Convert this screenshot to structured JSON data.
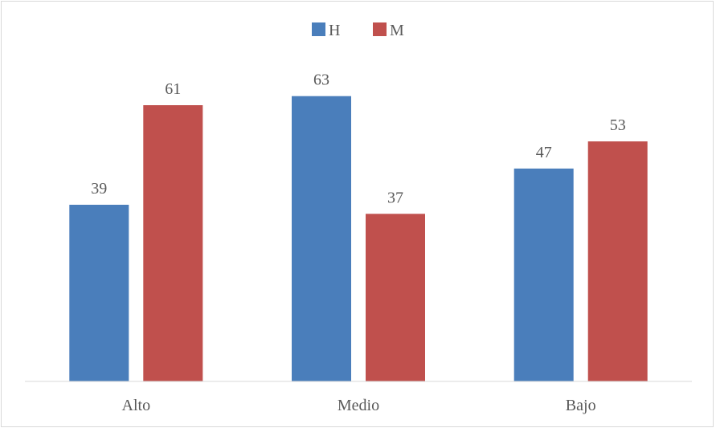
{
  "chart_data": {
    "type": "bar",
    "title": "",
    "xlabel": "",
    "ylabel": "",
    "categories": [
      "Alto",
      "Medio",
      "Bajo"
    ],
    "series": [
      {
        "name": "H",
        "color": "#4a7ebb",
        "values": [
          39,
          63,
          47
        ]
      },
      {
        "name": "M",
        "color": "#c0504d",
        "values": [
          61,
          37,
          53
        ]
      }
    ],
    "ylim": [
      0,
      70
    ],
    "grid": false,
    "legend": "top-center",
    "data_labels": true
  }
}
